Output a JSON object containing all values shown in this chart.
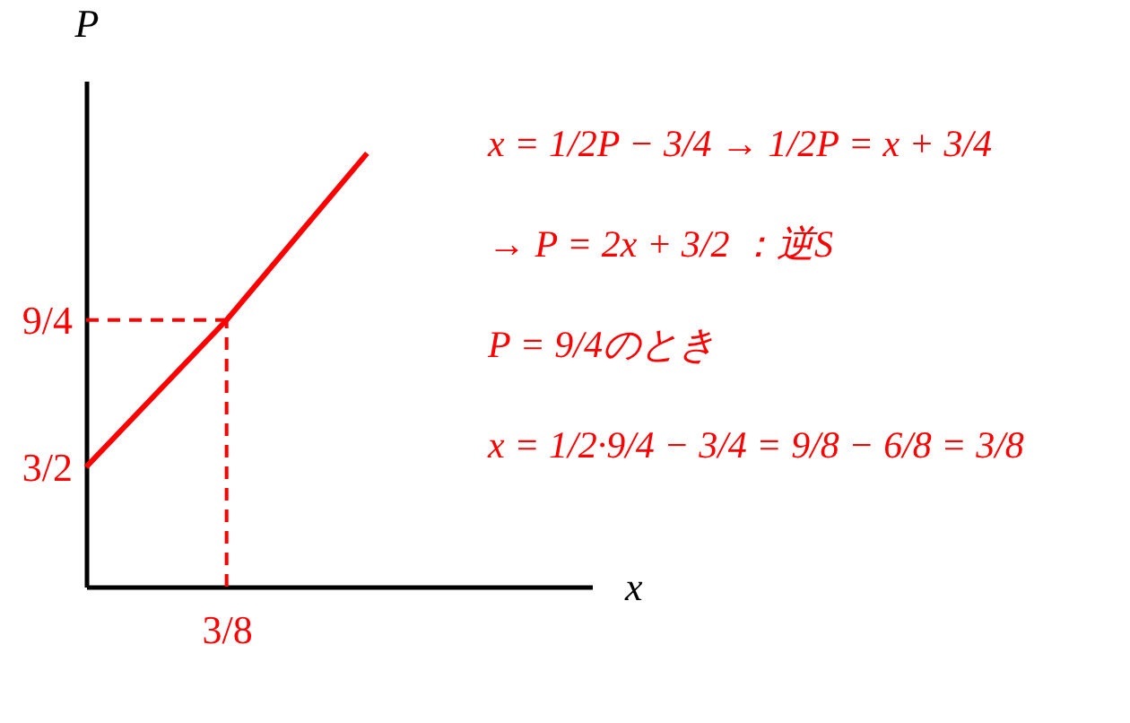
{
  "chart_data": {
    "type": "line",
    "xlabel": "x",
    "ylabel": "P",
    "categories": [
      null,
      "3/8",
      null
    ],
    "series": [
      {
        "color": "#ff0000",
        "values": [
          1.5,
          2.25,
          3.1
        ]
      }
    ],
    "ylim": [
      0.89,
      3.47
    ],
    "yticks": [
      {
        "value": 1.5,
        "label": "3/2"
      },
      {
        "value": 2.25,
        "label": "9/4"
      }
    ],
    "grid": false,
    "marker": "none",
    "line_style": "solid",
    "ref_lines": [
      {
        "axis": "y",
        "value": 2.25,
        "color": "#ff0000",
        "line_style": "dashed"
      },
      {
        "axis": "x",
        "value": "3/8",
        "color": "#ff0000",
        "line_style": "dashed"
      }
    ],
    "annotations": [
      "x = 1/2P − 3/4 → 1/2P = x + 3/4",
      "→ P = 2x + 3/2 ：逆S",
      "P = 9/4のとき",
      "x = 1/2·9/4 − 3/4 = 9/8 − 6/8 = 3/8"
    ]
  }
}
